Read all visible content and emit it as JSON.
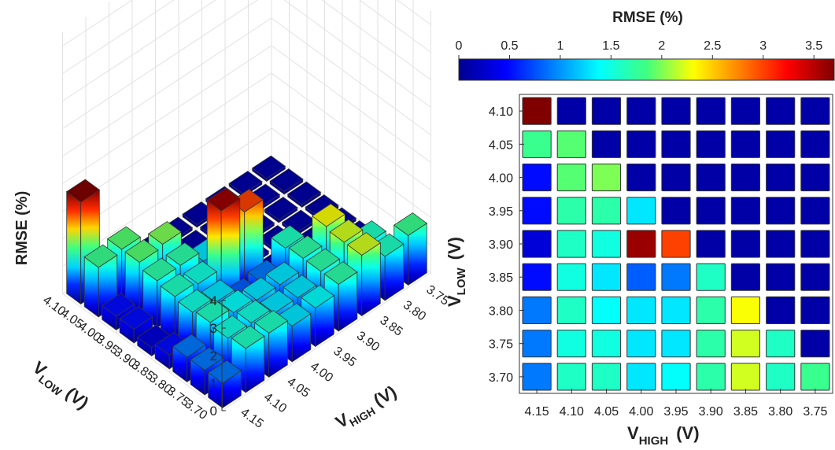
{
  "chart_data": [
    {
      "type": "bar3d",
      "zlabel": "RMSE (%)",
      "xlabel_main": "V",
      "xlabel_sub": "LOW",
      "xlabel_unit": "(V)",
      "ylabel_main": "V",
      "ylabel_sub": "HIGH",
      "ylabel_unit": "(V)",
      "z_ticks": [
        "0",
        "1",
        "2",
        "3",
        "4"
      ],
      "zlim": [
        0,
        4
      ],
      "v_low_ticks": [
        "4.10",
        "4.05",
        "4.00",
        "3.95",
        "3.90",
        "3.85",
        "3.80",
        "3.75",
        "3.70"
      ],
      "v_high_ticks": [
        "4.15",
        "4.10",
        "4.05",
        "4.00",
        "3.95",
        "3.90",
        "3.85",
        "3.80",
        "3.75"
      ],
      "note": "same RMSE matrix as heatmap"
    },
    {
      "type": "heatmap",
      "colorbar_title": "RMSE (%)",
      "colorbar_ticks": [
        "0",
        "0.5",
        "1",
        "1.5",
        "2",
        "2.5",
        "3",
        "3.5"
      ],
      "colorbar_range": [
        0,
        3.7
      ],
      "colormap": "jet",
      "ylabel_main": "V",
      "ylabel_sub": "LOW",
      "ylabel_unit": "(V)",
      "xlabel_main": "V",
      "xlabel_sub": "HIGH",
      "xlabel_unit": "(V)",
      "rows": [
        "4.10",
        "4.05",
        "4.00",
        "3.95",
        "3.90",
        "3.85",
        "3.80",
        "3.75",
        "3.70"
      ],
      "cols": [
        "4.15",
        "4.10",
        "4.05",
        "4.00",
        "3.95",
        "3.90",
        "3.85",
        "3.80",
        "3.75"
      ],
      "values": [
        [
          3.7,
          0.1,
          0.1,
          0.1,
          0.1,
          0.1,
          0.1,
          0.1,
          0.1
        ],
        [
          1.8,
          1.9,
          0.1,
          0.1,
          0.1,
          0.1,
          0.1,
          0.1,
          0.1
        ],
        [
          0.5,
          1.9,
          2.0,
          0.1,
          0.1,
          0.1,
          0.1,
          0.1,
          0.1
        ],
        [
          0.5,
          1.7,
          1.7,
          1.3,
          0.1,
          0.1,
          0.1,
          0.1,
          0.1
        ],
        [
          0.3,
          1.6,
          1.5,
          3.6,
          3.0,
          0.1,
          0.1,
          0.1,
          0.1
        ],
        [
          0.5,
          1.5,
          1.3,
          0.8,
          0.9,
          1.6,
          0.1,
          0.1,
          0.1
        ],
        [
          0.9,
          1.6,
          1.4,
          1.3,
          1.3,
          1.7,
          2.3,
          0.1,
          0.1
        ],
        [
          0.9,
          1.5,
          1.5,
          1.3,
          1.3,
          1.7,
          2.2,
          1.6,
          0.1
        ],
        [
          0.9,
          1.6,
          1.6,
          1.3,
          1.4,
          1.7,
          2.2,
          1.6,
          1.8
        ]
      ]
    }
  ]
}
